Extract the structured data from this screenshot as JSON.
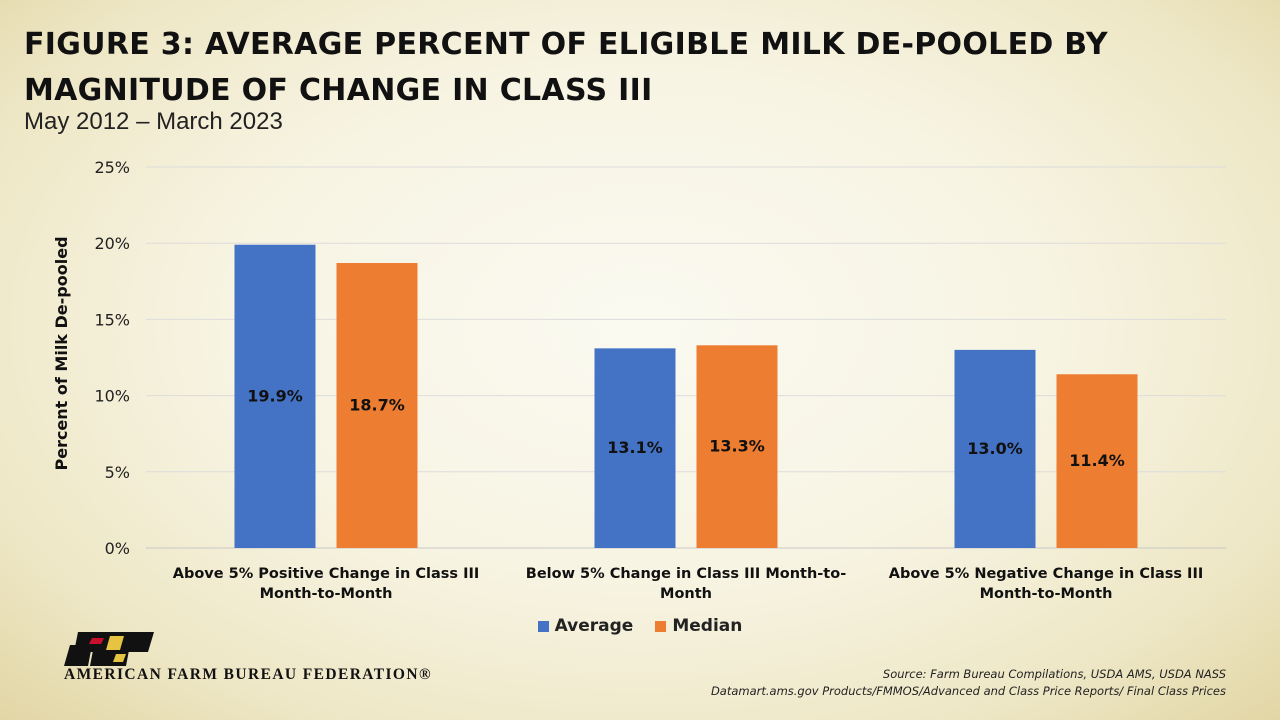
{
  "title_line1": "FIGURE 3: AVERAGE PERCENT OF ELIGIBLE MILK DE-POOLED BY",
  "title_line2": "MAGNITUDE OF CHANGE IN CLASS III",
  "subtitle": "May 2012 – March 2023",
  "chart_data": {
    "type": "bar",
    "title": "FIGURE 3: AVERAGE PERCENT OF ELIGIBLE MILK DE-POOLED BY MAGNITUDE OF CHANGE IN CLASS III",
    "subtitle": "May 2012 – March 2023",
    "ylabel": "Percent of Milk De-pooled",
    "xlabel": "",
    "ylim": [
      0,
      25
    ],
    "yticks": [
      "0%",
      "5%",
      "10%",
      "15%",
      "20%",
      "25%"
    ],
    "grid": true,
    "legend_position": "bottom",
    "categories": [
      [
        "Above 5% Positive Change in Class III",
        "Month-to-Month"
      ],
      [
        "Below 5% Change in Class III  Month-to-",
        "Month"
      ],
      [
        "Above 5% Negative Change in Class III",
        "Month-to-Month"
      ]
    ],
    "series": [
      {
        "name": "Average",
        "color": "#4472c4",
        "values": [
          19.9,
          13.1,
          13.0
        ],
        "labels": [
          "19.9%",
          "13.1%",
          "13.0%"
        ]
      },
      {
        "name": "Median",
        "color": "#ed7d31",
        "values": [
          18.7,
          13.3,
          11.4
        ],
        "labels": [
          "18.7%",
          "13.3%",
          "11.4%"
        ]
      }
    ]
  },
  "legend": [
    {
      "name": "Average",
      "color": "#4472c4"
    },
    {
      "name": "Median",
      "color": "#ed7d31"
    }
  ],
  "logo_text": "AMERICAN FARM BUREAU FEDERATION®",
  "source_line1": "Source: Farm Bureau Compilations, USDA AMS, USDA NASS",
  "source_line2": "Datamart.ams.gov Products/FMMOS/Advanced and Class Price Reports/ Final Class Prices"
}
